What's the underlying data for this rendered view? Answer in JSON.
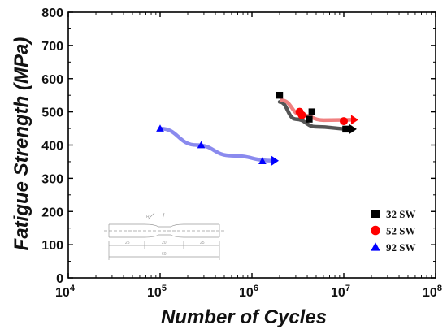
{
  "chart_data": {
    "type": "scatter",
    "title": "",
    "xlabel": "Number of Cycles",
    "ylabel": "Fatigue Strength (MPa)",
    "xscale": "log",
    "xlim": [
      10000,
      100000000
    ],
    "ylim": [
      0,
      800
    ],
    "x_ticks": [
      {
        "value": 10000,
        "mantissa": "10",
        "exp": "4"
      },
      {
        "value": 100000,
        "mantissa": "10",
        "exp": "5"
      },
      {
        "value": 1000000,
        "mantissa": "10",
        "exp": "6"
      },
      {
        "value": 10000000,
        "mantissa": "10",
        "exp": "7"
      },
      {
        "value": 100000000,
        "mantissa": "10",
        "exp": "8"
      }
    ],
    "y_ticks": [
      0,
      100,
      200,
      300,
      400,
      500,
      600,
      700,
      800
    ],
    "legend_position": "bottom-right",
    "grid": false,
    "series": [
      {
        "name": "32 SW",
        "marker": "square",
        "color": "#000000",
        "trend_color": "#555555",
        "points": [
          [
            2000000,
            550
          ],
          [
            4200000,
            478
          ],
          [
            4500000,
            500
          ],
          [
            10500000,
            448
          ]
        ],
        "runout": [
          10500000,
          448
        ],
        "trend": [
          [
            2000000,
            530
          ],
          [
            3000000,
            478
          ],
          [
            5000000,
            455
          ],
          [
            12000000,
            448
          ]
        ]
      },
      {
        "name": "52 SW",
        "marker": "circle",
        "color": "#ff0000",
        "trend_color": "#f08080",
        "points": [
          [
            3300000,
            500
          ],
          [
            3500000,
            490
          ],
          [
            10000000,
            472
          ]
        ],
        "runout": [
          10000000,
          472
        ],
        "trend": [
          [
            2100000,
            535
          ],
          [
            3500000,
            490
          ],
          [
            6000000,
            475
          ],
          [
            12500000,
            476
          ]
        ]
      },
      {
        "name": "92 SW",
        "marker": "triangle",
        "color": "#0000ff",
        "trend_color": "#8a8aee",
        "points": [
          [
            100000,
            450
          ],
          [
            280000,
            400
          ],
          [
            1300000,
            352
          ]
        ],
        "runout": [
          1300000,
          352
        ],
        "trend": [
          [
            100000,
            450
          ],
          [
            250000,
            400
          ],
          [
            600000,
            368
          ],
          [
            1700000,
            353
          ]
        ]
      }
    ],
    "inset": {
      "description_labels": [
        "25",
        "20",
        "25",
        "60",
        "R"
      ]
    }
  }
}
